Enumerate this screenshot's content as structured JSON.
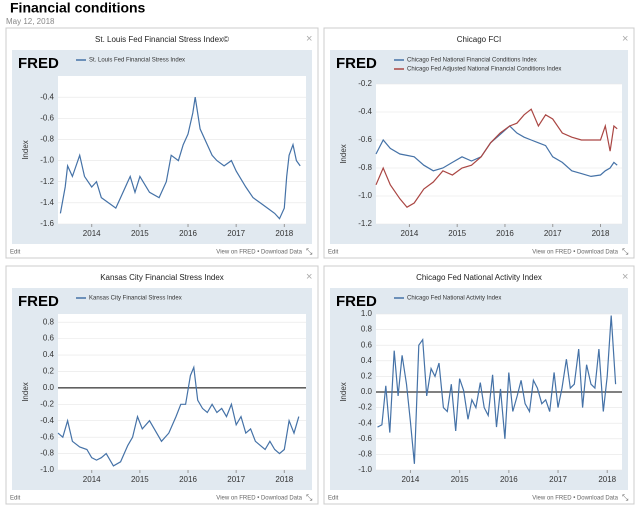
{
  "header": {
    "title": "Financial conditions",
    "date": "May 12, 2018"
  },
  "chart_data": [
    {
      "type": "line",
      "title": "St. Louis Fed Financial Stress Index©",
      "brand": "FRED",
      "y_label": "Index",
      "edit": "Edit",
      "links": "View on FRED • Download Data",
      "legend": "top",
      "zero_line": false,
      "x": [
        2013.35,
        2013.45,
        2013.5,
        2013.6,
        2013.75,
        2013.85,
        2014.0,
        2014.1,
        2014.2,
        2014.35,
        2014.5,
        2014.6,
        2014.8,
        2014.9,
        2015.0,
        2015.2,
        2015.4,
        2015.55,
        2015.65,
        2015.8,
        2015.9,
        2016.0,
        2016.1,
        2016.15,
        2016.25,
        2016.4,
        2016.5,
        2016.6,
        2016.75,
        2016.9,
        2017.0,
        2017.2,
        2017.35,
        2017.5,
        2017.65,
        2017.8,
        2017.9,
        2018.0,
        2018.05,
        2018.1,
        2018.18,
        2018.25,
        2018.33
      ],
      "series": [
        {
          "name": "St. Louis Fed Financial Stress Index",
          "color": "#4572a7",
          "values": [
            -1.5,
            -1.25,
            -1.05,
            -1.15,
            -0.95,
            -1.15,
            -1.25,
            -1.2,
            -1.35,
            -1.4,
            -1.45,
            -1.35,
            -1.15,
            -1.3,
            -1.15,
            -1.3,
            -1.35,
            -1.2,
            -0.95,
            -1.0,
            -0.85,
            -0.75,
            -0.55,
            -0.4,
            -0.7,
            -0.85,
            -0.95,
            -1.0,
            -1.05,
            -1.0,
            -1.1,
            -1.25,
            -1.35,
            -1.4,
            -1.45,
            -1.5,
            -1.55,
            -1.45,
            -1.15,
            -0.95,
            -0.85,
            -1.0,
            -1.05
          ]
        }
      ],
      "xlim": [
        2013.3,
        2018.45
      ],
      "xticks": [
        2014,
        2015,
        2016,
        2017,
        2018
      ],
      "ylim": [
        -1.6,
        -0.2
      ],
      "yticks": [
        -1.6,
        -1.4,
        -1.2,
        {
          "value": -1,
          "label": "-1.0"
        },
        -0.8,
        -0.6,
        -0.4
      ]
    },
    {
      "type": "line",
      "title": "Chicago FCI",
      "brand": "FRED",
      "y_label": "Index",
      "edit": "Edit",
      "links": "View on FRED • Download Data",
      "legend": "top",
      "zero_line": false,
      "x": [
        2013.3,
        2013.45,
        2013.6,
        2013.8,
        2013.95,
        2014.1,
        2014.3,
        2014.5,
        2014.7,
        2014.9,
        2015.1,
        2015.3,
        2015.5,
        2015.7,
        2015.9,
        2016.1,
        2016.25,
        2016.4,
        2016.55,
        2016.7,
        2016.85,
        2017.0,
        2017.2,
        2017.4,
        2017.6,
        2017.8,
        2018.0,
        2018.1,
        2018.2,
        2018.28,
        2018.35
      ],
      "series": [
        {
          "name": "Chicago Fed National Financial Conditions Index",
          "color": "#4572a7",
          "values": [
            -0.7,
            -0.6,
            -0.66,
            -0.7,
            -0.71,
            -0.72,
            -0.78,
            -0.82,
            -0.8,
            -0.76,
            -0.72,
            -0.75,
            -0.72,
            -0.62,
            -0.56,
            -0.5,
            -0.55,
            -0.58,
            -0.6,
            -0.62,
            -0.64,
            -0.72,
            -0.76,
            -0.82,
            -0.84,
            -0.86,
            -0.85,
            -0.82,
            -0.8,
            -0.76,
            -0.78
          ]
        },
        {
          "name": "Chicago Fed Adjusted National Financial Conditions Index",
          "color": "#aa4643",
          "values": [
            -0.92,
            -0.8,
            -0.92,
            -1.02,
            -1.08,
            -1.05,
            -0.95,
            -0.9,
            -0.82,
            -0.85,
            -0.8,
            -0.78,
            -0.72,
            -0.62,
            -0.55,
            -0.5,
            -0.48,
            -0.42,
            -0.38,
            -0.5,
            -0.42,
            -0.45,
            -0.55,
            -0.58,
            -0.6,
            -0.6,
            -0.6,
            -0.5,
            -0.68,
            -0.5,
            -0.52
          ]
        }
      ],
      "xlim": [
        2013.3,
        2018.45
      ],
      "xticks": [
        2014,
        2015,
        2016,
        2017,
        2018
      ],
      "ylim": [
        -1.2,
        -0.2
      ],
      "yticks": [
        -1.2,
        {
          "value": -1,
          "label": "-1.0"
        },
        -0.8,
        -0.6,
        -0.4,
        -0.2
      ]
    },
    {
      "type": "line",
      "title": "Kansas City Financial Stress Index",
      "brand": "FRED",
      "y_label": "Index",
      "edit": "Edit",
      "links": "View on FRED • Download Data",
      "legend": "top",
      "zero_line": true,
      "x": [
        2013.3,
        2013.4,
        2013.5,
        2013.6,
        2013.75,
        2013.9,
        2014.0,
        2014.1,
        2014.2,
        2014.3,
        2014.45,
        2014.6,
        2014.75,
        2014.85,
        2014.95,
        2015.05,
        2015.2,
        2015.3,
        2015.45,
        2015.6,
        2015.75,
        2015.85,
        2015.95,
        2016.05,
        2016.12,
        2016.2,
        2016.3,
        2016.4,
        2016.5,
        2016.6,
        2016.7,
        2016.8,
        2016.9,
        2017.0,
        2017.1,
        2017.2,
        2017.3,
        2017.4,
        2017.5,
        2017.6,
        2017.7,
        2017.8,
        2017.9,
        2018.0,
        2018.1,
        2018.2,
        2018.3
      ],
      "series": [
        {
          "name": "Kansas City Financial Stress Index",
          "color": "#4572a7",
          "values": [
            -0.55,
            -0.6,
            -0.4,
            -0.65,
            -0.72,
            -0.75,
            -0.85,
            -0.88,
            -0.85,
            -0.8,
            -0.95,
            -0.9,
            -0.7,
            -0.6,
            -0.35,
            -0.5,
            -0.4,
            -0.5,
            -0.65,
            -0.55,
            -0.35,
            -0.2,
            -0.2,
            0.15,
            0.25,
            -0.15,
            -0.25,
            -0.3,
            -0.2,
            -0.3,
            -0.25,
            -0.35,
            -0.2,
            -0.45,
            -0.35,
            -0.55,
            -0.5,
            -0.65,
            -0.7,
            -0.75,
            -0.65,
            -0.75,
            -0.8,
            -0.75,
            -0.4,
            -0.55,
            -0.35
          ]
        }
      ],
      "xlim": [
        2013.3,
        2018.45
      ],
      "xticks": [
        2014,
        2015,
        2016,
        2017,
        2018
      ],
      "ylim": [
        -1.0,
        0.9
      ],
      "yticks": [
        {
          "value": -1,
          "label": "-1.0"
        },
        -0.8,
        -0.6,
        -0.4,
        -0.2,
        {
          "value": 0,
          "label": "0.0"
        },
        0.2,
        0.4,
        0.6,
        0.8
      ]
    },
    {
      "type": "line",
      "title": "Chicago Fed National Activity Index",
      "brand": "FRED",
      "y_label": "Index",
      "edit": "Edit",
      "links": "View on FRED • Download Data",
      "legend": "top",
      "zero_line": true,
      "x": [
        2013.33,
        2013.42,
        2013.5,
        2013.58,
        2013.67,
        2013.75,
        2013.83,
        2013.92,
        2014.0,
        2014.08,
        2014.17,
        2014.25,
        2014.33,
        2014.42,
        2014.5,
        2014.58,
        2014.67,
        2014.75,
        2014.83,
        2014.92,
        2015.0,
        2015.08,
        2015.17,
        2015.25,
        2015.33,
        2015.42,
        2015.5,
        2015.58,
        2015.67,
        2015.75,
        2015.83,
        2015.92,
        2016.0,
        2016.08,
        2016.17,
        2016.25,
        2016.33,
        2016.42,
        2016.5,
        2016.58,
        2016.67,
        2016.75,
        2016.83,
        2016.92,
        2017.0,
        2017.08,
        2017.17,
        2017.25,
        2017.33,
        2017.42,
        2017.5,
        2017.58,
        2017.67,
        2017.75,
        2017.83,
        2017.92,
        2018.0,
        2018.08,
        2018.17
      ],
      "series": [
        {
          "name": "Chicago Fed National Activity Index",
          "color": "#4572a7",
          "values": [
            -0.45,
            -0.42,
            0.08,
            -0.52,
            0.53,
            -0.05,
            0.47,
            0.1,
            -0.38,
            -0.92,
            0.6,
            0.67,
            -0.05,
            0.3,
            0.2,
            0.37,
            -0.2,
            -0.25,
            0.1,
            -0.5,
            0.17,
            0.02,
            -0.35,
            -0.1,
            -0.2,
            0.12,
            -0.2,
            -0.3,
            0.22,
            -0.45,
            0.04,
            -0.6,
            0.25,
            -0.25,
            -0.05,
            0.15,
            -0.15,
            -0.25,
            0.15,
            0.05,
            -0.15,
            -0.1,
            -0.25,
            0.25,
            -0.2,
            0.05,
            0.42,
            0.05,
            0.1,
            0.55,
            -0.2,
            0.35,
            0.1,
            0.05,
            0.55,
            -0.25,
            0.2,
            0.98,
            0.1
          ]
        }
      ],
      "xlim": [
        2013.3,
        2018.3
      ],
      "xticks": [
        2014,
        2015,
        2016,
        2017,
        2018
      ],
      "ylim": [
        -1.0,
        1.0
      ],
      "yticks": [
        {
          "value": -1,
          "label": "-1.0"
        },
        -0.8,
        -0.6,
        -0.4,
        -0.2,
        {
          "value": 0,
          "label": "0.0"
        },
        0.2,
        0.4,
        0.6,
        0.8,
        {
          "value": 1,
          "label": "1.0"
        }
      ]
    }
  ]
}
